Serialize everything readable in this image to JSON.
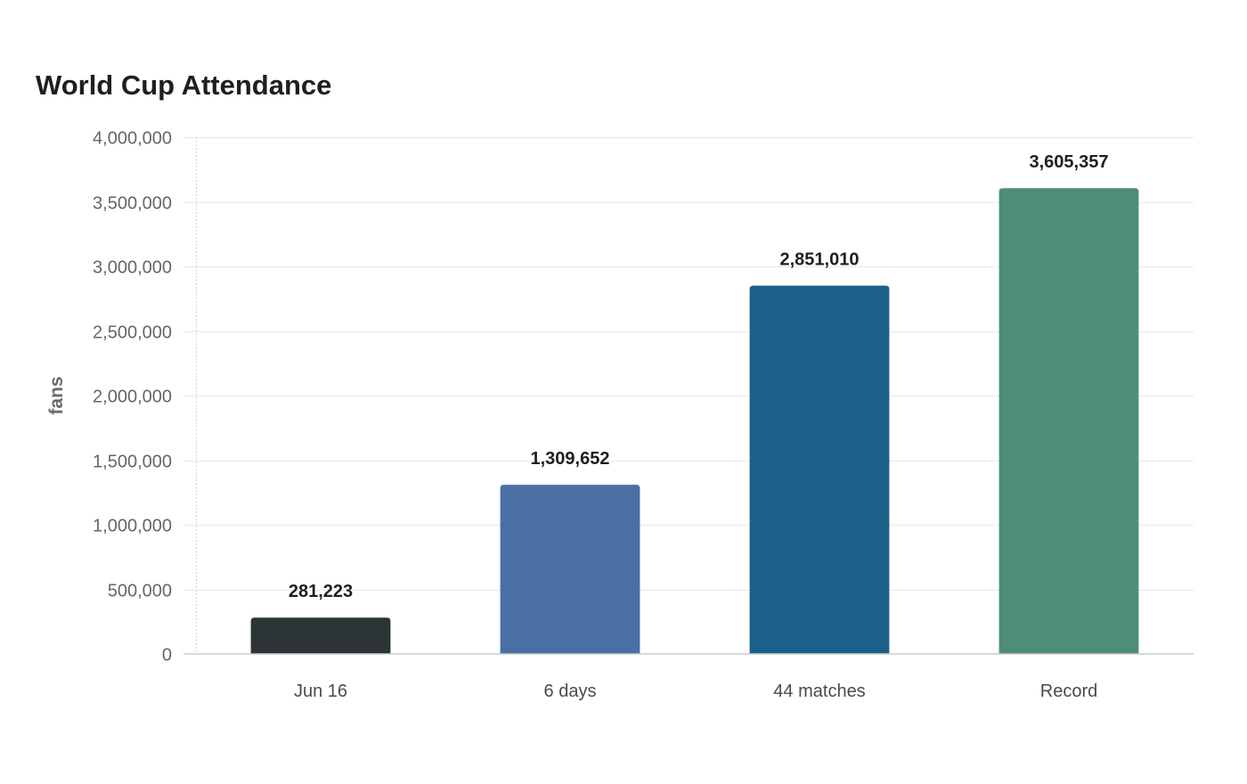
{
  "chart_data": {
    "type": "bar",
    "title": "World Cup Attendance",
    "xlabel": "",
    "ylabel": "fans",
    "categories": [
      "Jun 16",
      "6 days",
      "44 matches",
      "Record"
    ],
    "values": [
      281223,
      1309652,
      2851010,
      3605357
    ],
    "value_labels": [
      "281,223",
      "1,309,652",
      "2,851,010",
      "3,605,357"
    ],
    "bar_colors": [
      "#2d3436",
      "#4a6fa5",
      "#1a6089",
      "#4f8c7a"
    ],
    "ylim": [
      0,
      4000000
    ],
    "y_ticks": [
      0,
      500000,
      1000000,
      1500000,
      2000000,
      2500000,
      3000000,
      3500000,
      4000000
    ],
    "y_tick_labels": [
      "0",
      "500,000",
      "1,000,000",
      "1,500,000",
      "2,000,000",
      "2,500,000",
      "3,000,000",
      "3,500,000",
      "4,000,000"
    ],
    "grid": true,
    "legend": "none"
  }
}
